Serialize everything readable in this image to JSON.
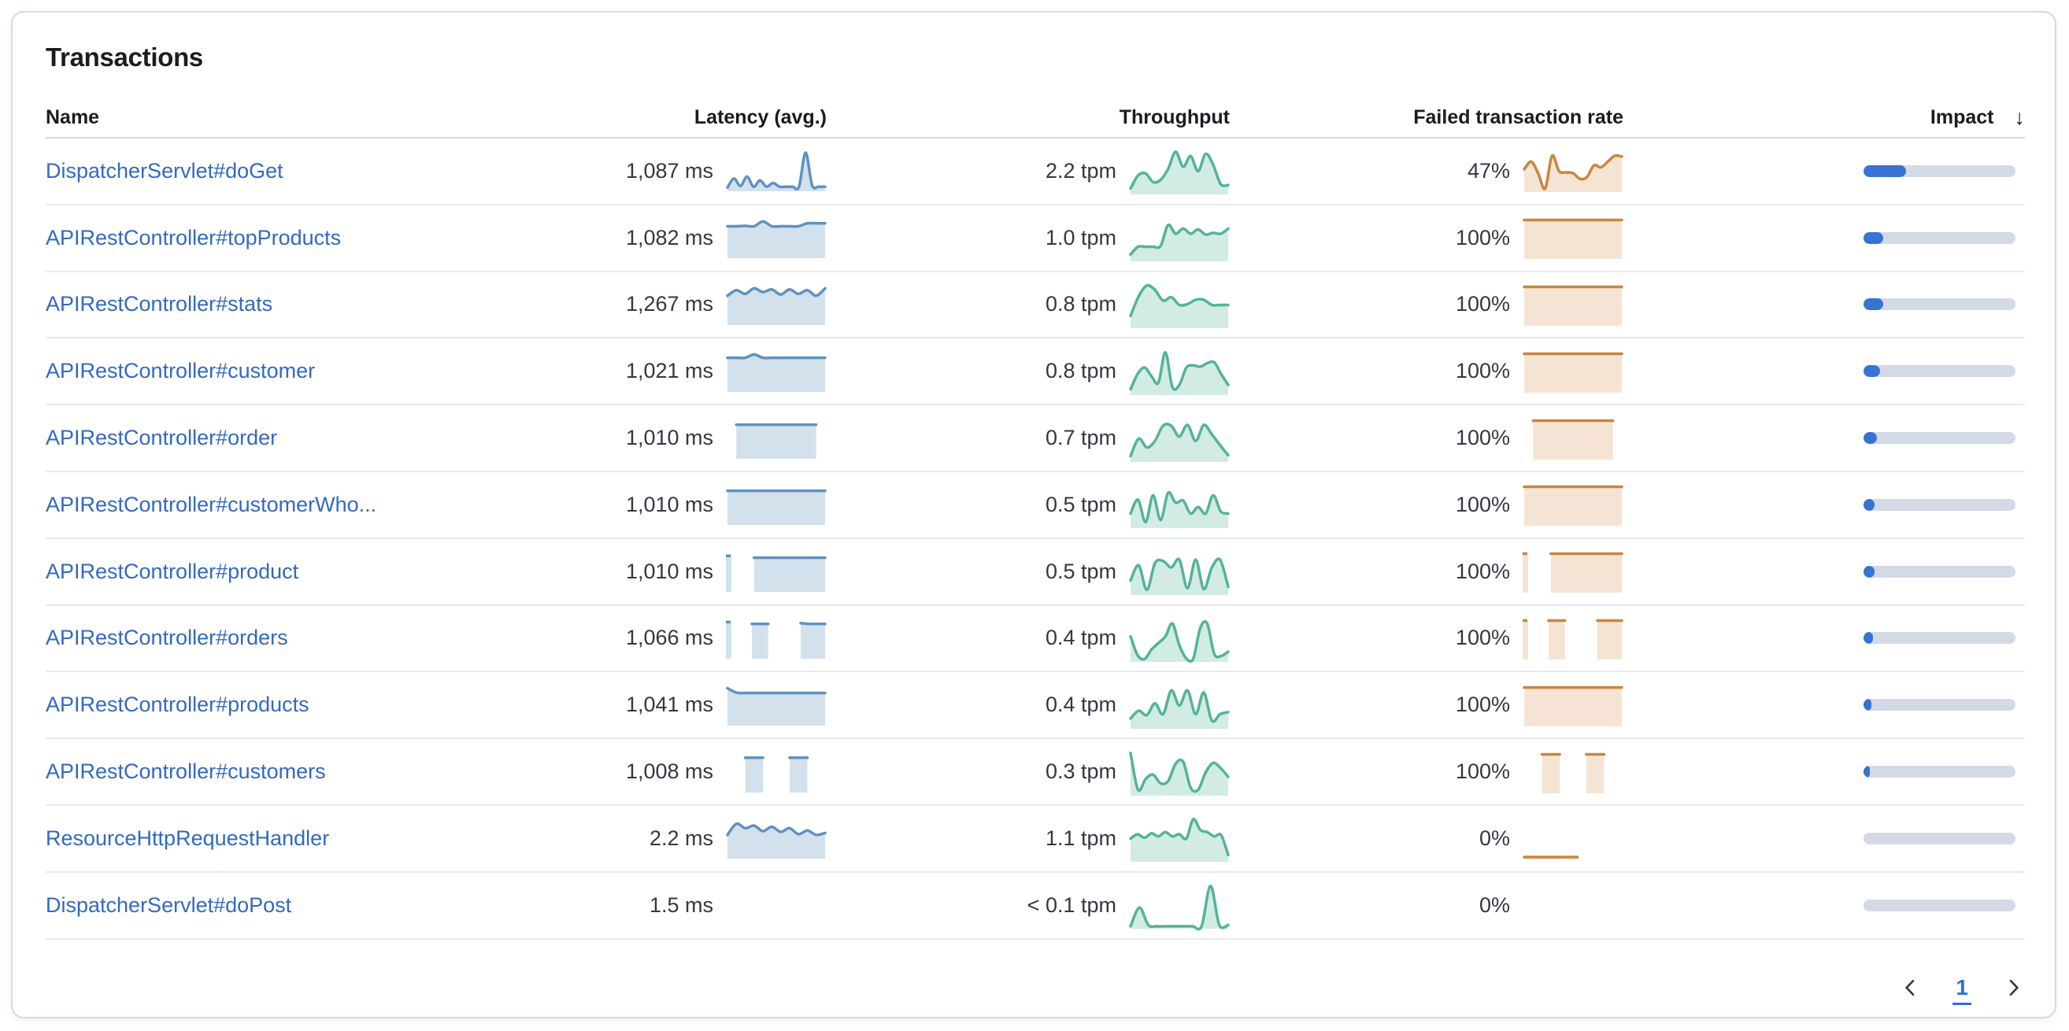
{
  "card": {
    "title": "Transactions"
  },
  "colors": {
    "latency_line": "#6092C0",
    "latency_fill": "rgba(96,146,192,0.28)",
    "throughput_line": "#54B399",
    "throughput_fill": "rgba(84,179,153,0.26)",
    "failed_line": "#C9853F",
    "failed_fill": "rgba(208,134,61,0.22)",
    "impact_fill": "#3673d2",
    "impact_track": "#d3dae6",
    "link": "#3269c3",
    "pagination_active": "#2e6fd6"
  },
  "icons": {
    "sort_descending": "arrow-down-icon",
    "prev": "chevron-left-icon",
    "next": "chevron-right-icon"
  },
  "table": {
    "sort_indicator": "↓",
    "columns": [
      {
        "id": "name",
        "label": "Name",
        "align": "left"
      },
      {
        "id": "latency",
        "label": "Latency (avg.)",
        "align": "right"
      },
      {
        "id": "throughput",
        "label": "Throughput",
        "align": "right"
      },
      {
        "id": "failed",
        "label": "Failed transaction rate",
        "align": "right"
      },
      {
        "id": "impact",
        "label": "Impact",
        "align": "right",
        "sorted": "desc"
      }
    ],
    "rows": [
      {
        "name": "DispatcherServlet#doGet",
        "latency": {
          "value": "1,087 ms",
          "spark": [
            0.06,
            0.3,
            0.1,
            0.35,
            0.08,
            0.25,
            0.08,
            0.18,
            0.08,
            0.08,
            0.08,
            0.08,
            1.0,
            0.12,
            0.08,
            0.08
          ]
        },
        "throughput": {
          "value": "2.2 tpm",
          "spark": [
            0.1,
            0.4,
            0.45,
            0.25,
            0.3,
            0.55,
            0.95,
            0.6,
            0.85,
            0.5,
            0.9,
            0.65,
            0.2,
            0.18
          ]
        },
        "failed": {
          "value": "47%",
          "spark": [
            0.55,
            0.75,
            0.45,
            0.05,
            0.9,
            0.5,
            0.47,
            0.45,
            0.3,
            0.35,
            0.65,
            0.6,
            0.75,
            0.9,
            0.88
          ]
        },
        "impact_pct": 28
      },
      {
        "name": "APIRestController#topProducts",
        "latency": {
          "value": "1,082 ms",
          "spark": [
            0.82,
            0.82,
            0.83,
            0.82,
            0.95,
            0.82,
            0.82,
            0.82,
            0.82,
            0.9,
            0.9,
            0.9
          ]
        },
        "throughput": {
          "value": "1.0 tpm",
          "spark": [
            0.12,
            0.3,
            0.3,
            0.3,
            0.32,
            0.8,
            0.6,
            0.72,
            0.6,
            0.7,
            0.58,
            0.62,
            0.6,
            0.72
          ]
        },
        "failed": {
          "value": "100%",
          "spark": [
            0.97,
            0.97,
            0.97,
            0.97,
            0.97,
            0.97,
            0.97,
            0.97,
            0.97,
            0.97,
            0.97,
            0.97
          ]
        },
        "impact_pct": 13
      },
      {
        "name": "APIRestController#stats",
        "latency": {
          "value": "1,267 ms",
          "spark": [
            0.75,
            0.9,
            0.8,
            0.95,
            0.85,
            0.92,
            0.78,
            0.92,
            0.8,
            0.9,
            0.75,
            0.95
          ]
        },
        "throughput": {
          "value": "0.8 tpm",
          "spark": [
            0.25,
            0.7,
            0.95,
            0.85,
            0.6,
            0.68,
            0.5,
            0.52,
            0.62,
            0.62,
            0.5,
            0.5,
            0.5
          ]
        },
        "failed": {
          "value": "100%",
          "spark": [
            0.97,
            0.97,
            0.97,
            0.97,
            0.97,
            0.97,
            0.97,
            0.97,
            0.97,
            0.97,
            0.97,
            0.97
          ]
        },
        "impact_pct": 13
      },
      {
        "name": "APIRestController#customer",
        "latency": {
          "value": "1,021 ms",
          "spark": [
            0.88,
            0.88,
            0.88,
            0.97,
            0.88,
            0.88,
            0.88,
            0.88,
            0.88,
            0.88,
            0.88,
            0.88
          ]
        },
        "throughput": {
          "value": "0.8 tpm",
          "spark": [
            0.1,
            0.45,
            0.6,
            0.4,
            0.25,
            0.95,
            0.15,
            0.2,
            0.6,
            0.65,
            0.62,
            0.7,
            0.72,
            0.45,
            0.2
          ]
        },
        "failed": {
          "value": "100%",
          "spark": [
            0.97,
            0.97,
            0.97,
            0.97,
            0.97,
            0.97,
            0.97,
            0.97,
            0.97,
            0.97,
            0.97,
            0.97
          ]
        },
        "impact_pct": 11
      },
      {
        "name": "APIRestController#order",
        "latency": {
          "value": "1,010 ms",
          "spark": [
            null,
            0.88,
            0.88,
            0.88,
            0.88,
            0.88,
            0.88,
            0.88,
            0.88,
            0.88,
            0.88,
            null
          ]
        },
        "throughput": {
          "value": "0.7 tpm",
          "spark": [
            0.1,
            0.5,
            0.3,
            0.45,
            0.8,
            0.8,
            0.55,
            0.82,
            0.45,
            0.82,
            0.6,
            0.35,
            0.12
          ]
        },
        "failed": {
          "value": "100%",
          "spark": [
            null,
            0.97,
            0.97,
            0.97,
            0.97,
            0.97,
            0.97,
            0.97,
            0.97,
            0.97,
            0.97,
            null
          ]
        },
        "impact_pct": 9
      },
      {
        "name": "APIRestController#customerWho...",
        "latency": {
          "value": "1,010 ms",
          "spark": [
            0.88,
            0.88,
            0.88,
            0.88,
            0.88,
            0.88,
            0.88,
            0.88,
            0.88,
            0.88,
            0.88,
            0.88
          ]
        },
        "throughput": {
          "value": "0.5 tpm",
          "spark": [
            0.3,
            0.62,
            0.1,
            0.72,
            0.15,
            0.78,
            0.55,
            0.6,
            0.3,
            0.45,
            0.3,
            0.72,
            0.35,
            0.3
          ]
        },
        "failed": {
          "value": "100%",
          "spark": [
            0.97,
            0.97,
            0.97,
            0.97,
            0.97,
            0.97,
            0.97,
            0.97,
            0.97,
            0.97,
            0.97,
            0.97
          ]
        },
        "impact_pct": 7
      },
      {
        "name": "APIRestController#product",
        "latency": {
          "value": "1,010 ms",
          "spark": [
            0.93,
            null,
            null,
            0.88,
            0.88,
            0.88,
            0.88,
            0.88,
            0.88,
            0.88,
            0.88,
            0.88
          ]
        },
        "throughput": {
          "value": "0.5 tpm",
          "spark": [
            0.3,
            0.65,
            0.08,
            0.7,
            0.75,
            0.6,
            0.78,
            0.12,
            0.78,
            0.1,
            0.6,
            0.78,
            0.15
          ]
        },
        "failed": {
          "value": "100%",
          "spark": [
            0.97,
            null,
            null,
            0.97,
            0.97,
            0.97,
            0.97,
            0.97,
            0.97,
            0.97,
            0.97,
            0.97
          ]
        },
        "impact_pct": 7
      },
      {
        "name": "APIRestController#orders",
        "latency": {
          "value": "1,066 ms",
          "spark": [
            0.95,
            null,
            null,
            0.9,
            0.9,
            0.9,
            null,
            null,
            null,
            0.92,
            0.9,
            0.9,
            0.9
          ]
        },
        "throughput": {
          "value": "0.4 tpm",
          "spark": [
            0.55,
            0.12,
            0.03,
            0.25,
            0.4,
            0.55,
            0.85,
            0.35,
            0.04,
            0.04,
            0.75,
            0.85,
            0.15,
            0.1,
            0.2
          ]
        },
        "failed": {
          "value": "100%",
          "spark": [
            0.97,
            null,
            null,
            0.97,
            0.97,
            0.97,
            null,
            null,
            null,
            0.97,
            0.97,
            0.97,
            0.97
          ]
        },
        "impact_pct": 6
      },
      {
        "name": "APIRestController#products",
        "latency": {
          "value": "1,041 ms",
          "spark": [
            0.97,
            0.85,
            0.84,
            0.84,
            0.84,
            0.84,
            0.84,
            0.84,
            0.84,
            0.84,
            0.84,
            0.84
          ]
        },
        "throughput": {
          "value": "0.4 tpm",
          "spark": [
            0.2,
            0.38,
            0.28,
            0.55,
            0.3,
            0.85,
            0.5,
            0.85,
            0.3,
            0.8,
            0.15,
            0.3,
            0.35
          ]
        },
        "failed": {
          "value": "100%",
          "spark": [
            0.97,
            0.97,
            0.97,
            0.97,
            0.97,
            0.97,
            0.97,
            0.97,
            0.97,
            0.97,
            0.97,
            0.97
          ]
        },
        "impact_pct": 5
      },
      {
        "name": "APIRestController#customers",
        "latency": {
          "value": "1,008 ms",
          "spark": [
            null,
            null,
            0.9,
            0.9,
            0.9,
            null,
            null,
            0.9,
            0.9,
            0.9,
            null,
            null
          ]
        },
        "throughput": {
          "value": "0.3 tpm",
          "spark": [
            0.95,
            0.1,
            0.35,
            0.45,
            0.25,
            0.3,
            0.7,
            0.75,
            0.15,
            0.1,
            0.5,
            0.72,
            0.6,
            0.4
          ]
        },
        "failed": {
          "value": "100%",
          "spark": [
            null,
            null,
            0.97,
            0.97,
            0.97,
            null,
            null,
            0.97,
            0.97,
            0.97,
            null,
            null
          ]
        },
        "impact_pct": 4
      },
      {
        "name": "ResourceHttpRequestHandler",
        "latency": {
          "value": "2.2 ms",
          "spark": [
            0.6,
            0.9,
            0.78,
            0.85,
            0.7,
            0.82,
            0.68,
            0.78,
            0.62,
            0.72,
            0.6,
            0.65
          ]
        },
        "throughput": {
          "value": "1.1 tpm",
          "spark": [
            0.5,
            0.6,
            0.52,
            0.62,
            0.55,
            0.65,
            0.55,
            0.6,
            0.5,
            0.95,
            0.7,
            0.65,
            0.55,
            0.58,
            0.12
          ]
        },
        "failed": {
          "value": "0%",
          "spark": [
            0.02,
            0.02,
            0.02,
            0.02,
            0.02,
            0.02,
            0.02,
            null,
            null,
            null,
            null,
            null
          ]
        },
        "impact_pct": 0
      },
      {
        "name": "DispatcherServlet#doPost",
        "latency": {
          "value": "1.5 ms",
          "spark": null
        },
        "throughput": {
          "value": "< 0.1 tpm",
          "spark": [
            0.02,
            0.45,
            0.05,
            0.02,
            0.02,
            0.02,
            0.02,
            0.02,
            0.02,
            0.95,
            0.05,
            0.05
          ]
        },
        "failed": {
          "value": "0%",
          "spark": null
        },
        "impact_pct": 0
      }
    ]
  },
  "pagination": {
    "current_page": "1"
  }
}
